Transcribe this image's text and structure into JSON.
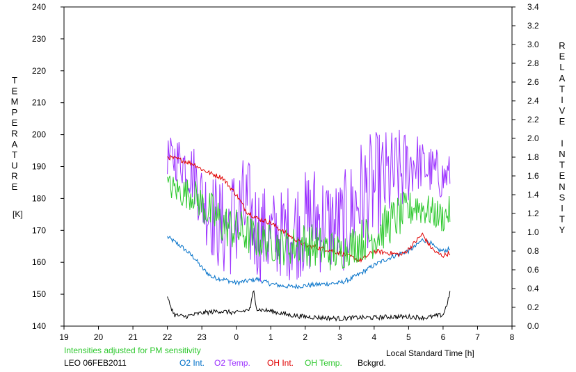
{
  "chart_data": {
    "type": "line",
    "station": "LEO 06FEB2011",
    "note": "Intensities adjusted for PM sensitivity",
    "xlabel": "Local Standard Time [h]",
    "ylabel_left": "TEMPERATURE",
    "ylabel_left_unit": "[K]",
    "ylabel_right": "RELATIVE INTENSITY",
    "x_ticks": [
      19,
      20,
      21,
      22,
      23,
      24,
      25,
      26,
      27,
      28,
      29,
      30,
      31,
      32
    ],
    "x_tick_labels": [
      "19",
      "20",
      "21",
      "22",
      "23",
      "0",
      "1",
      "2",
      "3",
      "4",
      "5",
      "6",
      "7",
      "8"
    ],
    "xlim": [
      19,
      32
    ],
    "ylim_left": [
      140,
      240
    ],
    "ylim_right": [
      0.0,
      3.4
    ],
    "y_left_ticks": [
      "240",
      "230",
      "220",
      "210",
      "200",
      "190",
      "180",
      "170",
      "160",
      "150",
      "140"
    ],
    "y_right_ticks": [
      "3.4",
      "3.2",
      "3.0",
      "2.8",
      "2.6",
      "2.4",
      "2.2",
      "2.0",
      "1.8",
      "1.6",
      "1.4",
      "1.2",
      "1.0",
      "0.8",
      "0.6",
      "0.4",
      "0.2",
      "0.0"
    ],
    "grid": false,
    "legend_position": "bottom",
    "series": [
      {
        "name": "O2 Int.",
        "axis": "right",
        "color": "#0070c8",
        "x": [
          22.0,
          22.4,
          22.8,
          23.0,
          23.3,
          23.6,
          24.0,
          24.3,
          24.6,
          25.0,
          25.3,
          25.6,
          26.0,
          26.3,
          26.6,
          27.0,
          27.3,
          27.6,
          28.0,
          28.4,
          28.8,
          29.0,
          29.2,
          29.4,
          29.6,
          29.8,
          30.0,
          30.2
        ],
        "y": [
          0.95,
          0.85,
          0.72,
          0.62,
          0.52,
          0.5,
          0.46,
          0.48,
          0.5,
          0.45,
          0.43,
          0.42,
          0.43,
          0.44,
          0.45,
          0.46,
          0.5,
          0.56,
          0.65,
          0.72,
          0.78,
          0.8,
          0.85,
          0.92,
          0.9,
          0.82,
          0.8,
          0.82
        ]
      },
      {
        "name": "O2 Temp.",
        "axis": "left",
        "color": "#9b30ff",
        "x": [
          22.0,
          22.4,
          22.8,
          23.0,
          23.3,
          23.6,
          24.0,
          24.3,
          24.6,
          25.0,
          25.3,
          25.6,
          26.0,
          26.3,
          26.6,
          27.0,
          27.3,
          27.6,
          28.0,
          28.4,
          28.8,
          29.0,
          29.2,
          29.4,
          29.6,
          29.8,
          30.0,
          30.2
        ],
        "y": [
          193,
          192,
          187,
          180,
          175,
          170,
          174,
          176,
          170,
          168,
          169,
          170,
          172,
          174,
          172,
          171,
          175,
          181,
          183,
          186,
          188,
          190,
          192,
          190,
          189,
          188,
          186,
          188
        ],
        "amplitude": [
          6,
          8,
          10,
          12,
          14,
          16,
          18,
          18,
          16,
          15,
          14,
          16,
          17,
          18,
          16,
          15,
          17,
          18,
          18,
          16,
          14,
          12,
          10,
          8,
          8,
          8,
          7,
          6
        ]
      },
      {
        "name": "OH Int.",
        "axis": "right",
        "color": "#e00000",
        "x": [
          22.0,
          22.4,
          22.8,
          23.0,
          23.3,
          23.6,
          24.0,
          24.3,
          24.6,
          25.0,
          25.3,
          25.6,
          26.0,
          26.3,
          26.6,
          27.0,
          27.3,
          27.6,
          28.0,
          28.4,
          28.8,
          29.0,
          29.2,
          29.4,
          29.6,
          29.8,
          30.0,
          30.2
        ],
        "y": [
          1.8,
          1.77,
          1.72,
          1.67,
          1.62,
          1.58,
          1.4,
          1.22,
          1.15,
          1.1,
          1.02,
          0.95,
          0.86,
          0.84,
          0.82,
          0.78,
          0.74,
          0.7,
          0.8,
          0.78,
          0.76,
          0.82,
          0.9,
          0.98,
          0.86,
          0.78,
          0.75,
          0.78
        ]
      },
      {
        "name": "OH Temp.",
        "axis": "left",
        "color": "#2ec82e",
        "x": [
          22.0,
          22.4,
          22.8,
          23.0,
          23.3,
          23.6,
          24.0,
          24.3,
          24.6,
          25.0,
          25.3,
          25.6,
          26.0,
          26.3,
          26.6,
          27.0,
          27.3,
          27.6,
          28.0,
          28.4,
          28.8,
          29.0,
          29.2,
          29.4,
          29.6,
          29.8,
          30.0,
          30.2
        ],
        "y": [
          184,
          182,
          181,
          178,
          175,
          172,
          170,
          169,
          167,
          166,
          165,
          165,
          166,
          165,
          164,
          163,
          165,
          167,
          168,
          172,
          175,
          176,
          178,
          177,
          176,
          175,
          174,
          176
        ],
        "amplitude": [
          4,
          5,
          5,
          6,
          7,
          7,
          7,
          7,
          6,
          6,
          6,
          6,
          7,
          7,
          7,
          6,
          6,
          7,
          7,
          7,
          7,
          6,
          6,
          6,
          5,
          5,
          5,
          5
        ]
      },
      {
        "name": "Bckgrd.",
        "axis": "right",
        "color": "#000000",
        "x": [
          22.0,
          22.2,
          22.5,
          23.0,
          23.5,
          24.0,
          24.4,
          24.5,
          24.6,
          25.0,
          25.5,
          26.0,
          26.5,
          27.0,
          27.5,
          28.0,
          28.5,
          29.0,
          29.5,
          30.0,
          30.1,
          30.2
        ],
        "y": [
          0.3,
          0.12,
          0.1,
          0.14,
          0.16,
          0.14,
          0.18,
          0.38,
          0.18,
          0.16,
          0.12,
          0.1,
          0.09,
          0.08,
          0.09,
          0.09,
          0.1,
          0.1,
          0.09,
          0.12,
          0.22,
          0.35
        ]
      }
    ]
  }
}
